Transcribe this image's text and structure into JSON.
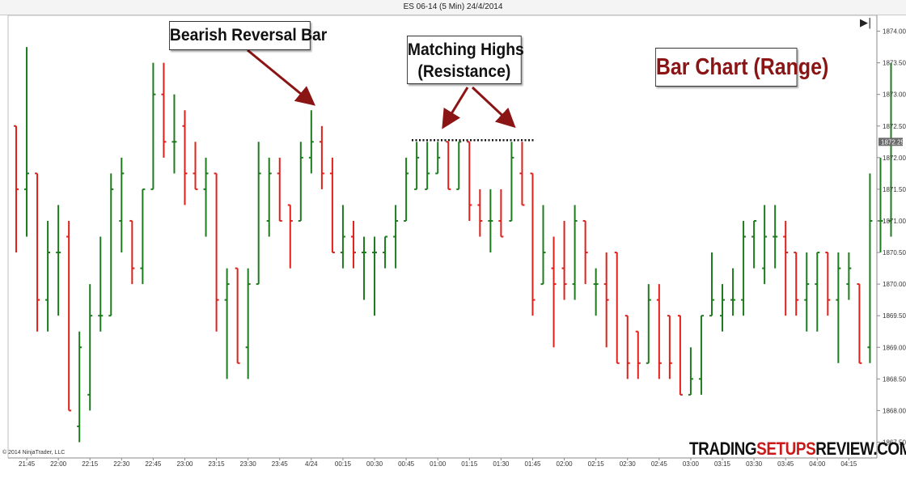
{
  "window": {
    "title": "ES 06-14 (5 Min)  24/4/2014",
    "play_icon": "skip-to-end-icon",
    "copyright": "© 2014 NinjaTrader, LLC"
  },
  "annotations": {
    "bearish": "Bearish Reversal Bar",
    "highs_line1": "Matching Highs",
    "highs_line2": "(Resistance)",
    "chart_type": "Bar Chart (Range)"
  },
  "watermark": {
    "part1": "TRADING",
    "part2": "SETUPS",
    "part3": "REVIEW.COM"
  },
  "colors": {
    "up": "#1e7b1e",
    "down": "#e0201b",
    "arrow": "#8b1414",
    "callout_title": "#8b1414"
  },
  "chart_data": {
    "type": "ohlc",
    "title": "ES 06-14 (5 Min)  24/4/2014",
    "ylim": [
      1867.25,
      1874.25
    ],
    "y_ticks": [
      "1867.50",
      "1868.00",
      "1868.50",
      "1869.00",
      "1869.50",
      "1870.00",
      "1870.50",
      "1871.00",
      "1871.50",
      "1872.00",
      "1872.50",
      "1873.00",
      "1873.50",
      "1874.00"
    ],
    "x_ticks": [
      "21:45",
      "22:00",
      "22:15",
      "22:30",
      "22:45",
      "23:00",
      "23:15",
      "23:30",
      "23:45",
      "4/24",
      "00:15",
      "00:30",
      "00:45",
      "01:00",
      "01:15",
      "01:30",
      "01:45",
      "02:00",
      "02:15",
      "02:30",
      "02:45",
      "03:00",
      "03:15",
      "03:30",
      "03:45",
      "04:00",
      "04:15"
    ],
    "x_tick_positions": [
      1.0,
      4.0,
      7.0,
      10.0,
      13.0,
      16.0,
      19.0,
      22.0,
      25.0,
      28.0,
      31.0,
      34.0,
      37.0,
      40.0,
      43.0,
      46.0,
      49.0,
      52.0,
      55.0,
      58.0,
      61.0,
      64.0,
      67.0,
      70.0,
      73.0,
      76.0,
      79.0
    ],
    "last_price": "1872.25",
    "resistance_level": 1872.25,
    "bars": [
      {
        "o": 1872.5,
        "h": 1872.5,
        "l": 1870.5,
        "c": 1871.5
      },
      {
        "o": 1871.5,
        "h": 1873.75,
        "l": 1870.75,
        "c": 1871.75
      },
      {
        "o": 1871.75,
        "h": 1871.75,
        "l": 1869.25,
        "c": 1869.75
      },
      {
        "o": 1869.75,
        "h": 1871.0,
        "l": 1869.25,
        "c": 1870.5
      },
      {
        "o": 1870.5,
        "h": 1871.25,
        "l": 1869.5,
        "c": 1870.5
      },
      {
        "o": 1870.75,
        "h": 1871.0,
        "l": 1868.0,
        "c": 1868.0
      },
      {
        "o": 1867.75,
        "h": 1869.25,
        "l": 1867.5,
        "c": 1869.0
      },
      {
        "o": 1868.25,
        "h": 1870.0,
        "l": 1868.0,
        "c": 1869.5
      },
      {
        "o": 1869.5,
        "h": 1870.75,
        "l": 1869.25,
        "c": 1869.5
      },
      {
        "o": 1869.5,
        "h": 1871.75,
        "l": 1869.5,
        "c": 1871.5
      },
      {
        "o": 1871.0,
        "h": 1872.0,
        "l": 1870.5,
        "c": 1871.75
      },
      {
        "o": 1871.0,
        "h": 1871.0,
        "l": 1870.0,
        "c": 1870.25
      },
      {
        "o": 1870.25,
        "h": 1871.5,
        "l": 1870.0,
        "c": 1871.5
      },
      {
        "o": 1871.5,
        "h": 1873.5,
        "l": 1871.5,
        "c": 1873.0
      },
      {
        "o": 1873.0,
        "h": 1873.5,
        "l": 1872.0,
        "c": 1872.25
      },
      {
        "o": 1872.25,
        "h": 1873.0,
        "l": 1871.75,
        "c": 1872.25
      },
      {
        "o": 1872.5,
        "h": 1872.75,
        "l": 1871.25,
        "c": 1871.75
      },
      {
        "o": 1871.75,
        "h": 1872.25,
        "l": 1871.5,
        "c": 1871.5
      },
      {
        "o": 1871.5,
        "h": 1872.0,
        "l": 1870.75,
        "c": 1871.75
      },
      {
        "o": 1871.75,
        "h": 1871.75,
        "l": 1869.25,
        "c": 1869.75
      },
      {
        "o": 1869.75,
        "h": 1870.25,
        "l": 1868.5,
        "c": 1870.0
      },
      {
        "o": 1870.25,
        "h": 1870.25,
        "l": 1868.75,
        "c": 1868.75
      },
      {
        "o": 1869.0,
        "h": 1870.25,
        "l": 1868.5,
        "c": 1870.0
      },
      {
        "o": 1870.0,
        "h": 1872.25,
        "l": 1870.0,
        "c": 1871.75
      },
      {
        "o": 1871.0,
        "h": 1872.0,
        "l": 1870.75,
        "c": 1871.75
      },
      {
        "o": 1871.75,
        "h": 1872.0,
        "l": 1871.0,
        "c": 1871.0
      },
      {
        "o": 1871.25,
        "h": 1871.25,
        "l": 1870.25,
        "c": 1871.0
      },
      {
        "o": 1871.0,
        "h": 1872.25,
        "l": 1871.0,
        "c": 1872.0
      },
      {
        "o": 1872.0,
        "h": 1872.75,
        "l": 1871.75,
        "c": 1872.25
      },
      {
        "o": 1872.25,
        "h": 1872.5,
        "l": 1871.5,
        "c": 1871.75
      },
      {
        "o": 1871.75,
        "h": 1872.0,
        "l": 1870.5,
        "c": 1870.5
      },
      {
        "o": 1870.5,
        "h": 1871.25,
        "l": 1870.25,
        "c": 1870.75
      },
      {
        "o": 1870.75,
        "h": 1871.0,
        "l": 1870.25,
        "c": 1870.5
      },
      {
        "o": 1870.5,
        "h": 1870.75,
        "l": 1869.75,
        "c": 1870.5
      },
      {
        "o": 1870.5,
        "h": 1870.75,
        "l": 1869.5,
        "c": 1870.5
      },
      {
        "o": 1870.5,
        "h": 1870.75,
        "l": 1870.25,
        "c": 1870.75
      },
      {
        "o": 1870.75,
        "h": 1871.25,
        "l": 1870.25,
        "c": 1871.0
      },
      {
        "o": 1871.0,
        "h": 1872.0,
        "l": 1871.0,
        "c": 1871.75
      },
      {
        "o": 1871.5,
        "h": 1872.25,
        "l": 1871.5,
        "c": 1872.0
      },
      {
        "o": 1871.5,
        "h": 1872.25,
        "l": 1871.5,
        "c": 1871.75
      },
      {
        "o": 1871.75,
        "h": 1872.25,
        "l": 1871.75,
        "c": 1872.0
      },
      {
        "o": 1872.25,
        "h": 1872.25,
        "l": 1871.5,
        "c": 1871.5
      },
      {
        "o": 1871.5,
        "h": 1872.25,
        "l": 1871.5,
        "c": 1872.25
      },
      {
        "o": 1872.25,
        "h": 1872.25,
        "l": 1871.0,
        "c": 1871.25
      },
      {
        "o": 1871.25,
        "h": 1871.5,
        "l": 1870.75,
        "c": 1871.0
      },
      {
        "o": 1871.0,
        "h": 1871.5,
        "l": 1870.5,
        "c": 1871.0
      },
      {
        "o": 1871.0,
        "h": 1871.5,
        "l": 1870.75,
        "c": 1870.75
      },
      {
        "o": 1871.0,
        "h": 1872.25,
        "l": 1871.0,
        "c": 1872.0
      },
      {
        "o": 1871.75,
        "h": 1872.25,
        "l": 1871.25,
        "c": 1871.25
      },
      {
        "o": 1871.75,
        "h": 1871.75,
        "l": 1869.5,
        "c": 1869.75
      },
      {
        "o": 1870.0,
        "h": 1871.25,
        "l": 1870.0,
        "c": 1870.5
      },
      {
        "o": 1870.25,
        "h": 1870.75,
        "l": 1869.0,
        "c": 1870.0
      },
      {
        "o": 1870.25,
        "h": 1871.0,
        "l": 1869.75,
        "c": 1870.0
      },
      {
        "o": 1870.0,
        "h": 1871.25,
        "l": 1869.75,
        "c": 1871.0
      },
      {
        "o": 1871.0,
        "h": 1871.0,
        "l": 1870.0,
        "c": 1870.5
      },
      {
        "o": 1870.0,
        "h": 1870.25,
        "l": 1869.5,
        "c": 1870.0
      },
      {
        "o": 1870.0,
        "h": 1870.5,
        "l": 1869.0,
        "c": 1869.75
      },
      {
        "o": 1870.5,
        "h": 1870.5,
        "l": 1868.75,
        "c": 1868.75
      },
      {
        "o": 1869.5,
        "h": 1869.5,
        "l": 1868.5,
        "c": 1868.75
      },
      {
        "o": 1869.25,
        "h": 1869.25,
        "l": 1868.5,
        "c": 1868.75
      },
      {
        "o": 1868.75,
        "h": 1870.0,
        "l": 1868.75,
        "c": 1869.75
      },
      {
        "o": 1869.75,
        "h": 1870.0,
        "l": 1868.5,
        "c": 1868.75
      },
      {
        "o": 1869.5,
        "h": 1869.5,
        "l": 1868.5,
        "c": 1868.75
      },
      {
        "o": 1869.5,
        "h": 1869.5,
        "l": 1868.25,
        "c": 1868.25
      },
      {
        "o": 1868.25,
        "h": 1869.0,
        "l": 1868.25,
        "c": 1868.5
      },
      {
        "o": 1868.5,
        "h": 1869.5,
        "l": 1868.25,
        "c": 1869.5
      },
      {
        "o": 1869.5,
        "h": 1870.5,
        "l": 1869.5,
        "c": 1869.75
      },
      {
        "o": 1869.5,
        "h": 1870.0,
        "l": 1869.25,
        "c": 1869.75
      },
      {
        "o": 1869.75,
        "h": 1870.25,
        "l": 1869.5,
        "c": 1869.75
      },
      {
        "o": 1869.75,
        "h": 1871.0,
        "l": 1869.5,
        "c": 1870.75
      },
      {
        "o": 1870.75,
        "h": 1871.0,
        "l": 1870.25,
        "c": 1871.0
      },
      {
        "o": 1870.25,
        "h": 1871.25,
        "l": 1870.0,
        "c": 1870.75
      },
      {
        "o": 1870.75,
        "h": 1871.25,
        "l": 1870.25,
        "c": 1870.75
      },
      {
        "o": 1870.75,
        "h": 1871.0,
        "l": 1869.5,
        "c": 1870.5
      },
      {
        "o": 1870.5,
        "h": 1870.5,
        "l": 1869.5,
        "c": 1869.75
      },
      {
        "o": 1869.75,
        "h": 1870.5,
        "l": 1869.25,
        "c": 1870.0
      },
      {
        "o": 1870.0,
        "h": 1870.5,
        "l": 1869.25,
        "c": 1870.5
      },
      {
        "o": 1870.5,
        "h": 1870.5,
        "l": 1869.5,
        "c": 1869.75
      },
      {
        "o": 1869.75,
        "h": 1870.5,
        "l": 1868.75,
        "c": 1870.25
      },
      {
        "o": 1870.0,
        "h": 1870.5,
        "l": 1869.75,
        "c": 1870.25
      },
      {
        "o": 1870.0,
        "h": 1870.0,
        "l": 1868.75,
        "c": 1868.75
      },
      {
        "o": 1869.0,
        "h": 1871.75,
        "l": 1868.75,
        "c": 1871.0
      },
      {
        "o": 1871.0,
        "h": 1872.0,
        "l": 1870.5,
        "c": 1871.0
      },
      {
        "o": 1871.0,
        "h": 1873.5,
        "l": 1870.75,
        "c": 1872.25
      }
    ]
  }
}
